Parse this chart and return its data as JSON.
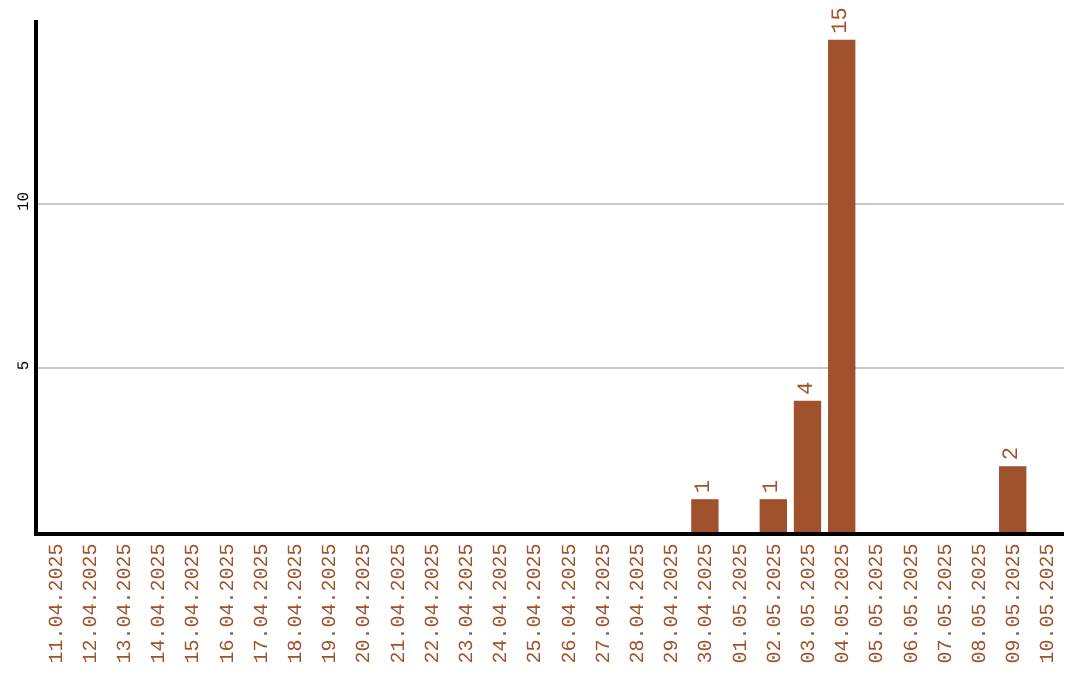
{
  "chart_data": {
    "type": "bar",
    "categories": [
      "11.04.2025",
      "12.04.2025",
      "13.04.2025",
      "14.04.2025",
      "15.04.2025",
      "16.04.2025",
      "17.04.2025",
      "18.04.2025",
      "19.04.2025",
      "20.04.2025",
      "21.04.2025",
      "22.04.2025",
      "23.04.2025",
      "24.04.2025",
      "25.04.2025",
      "26.04.2025",
      "27.04.2025",
      "28.04.2025",
      "29.04.2025",
      "30.04.2025",
      "01.05.2025",
      "02.05.2025",
      "03.05.2025",
      "04.05.2025",
      "05.05.2025",
      "06.05.2025",
      "07.05.2025",
      "08.05.2025",
      "09.05.2025",
      "10.05.2025"
    ],
    "values": [
      0,
      0,
      0,
      0,
      0,
      0,
      0,
      0,
      0,
      0,
      0,
      0,
      0,
      0,
      0,
      0,
      0,
      0,
      0,
      1,
      0,
      1,
      4,
      15,
      0,
      0,
      0,
      0,
      2,
      0
    ],
    "value_labels": [
      null,
      null,
      null,
      null,
      null,
      null,
      null,
      null,
      null,
      null,
      null,
      null,
      null,
      null,
      null,
      null,
      null,
      null,
      null,
      "1",
      null,
      "1",
      "4",
      "15",
      null,
      null,
      null,
      null,
      "2",
      null
    ],
    "color": "#a0522d",
    "ylim": [
      0,
      15.6
    ],
    "yticks": [
      5,
      10
    ],
    "grid": "y",
    "legend": false
  }
}
